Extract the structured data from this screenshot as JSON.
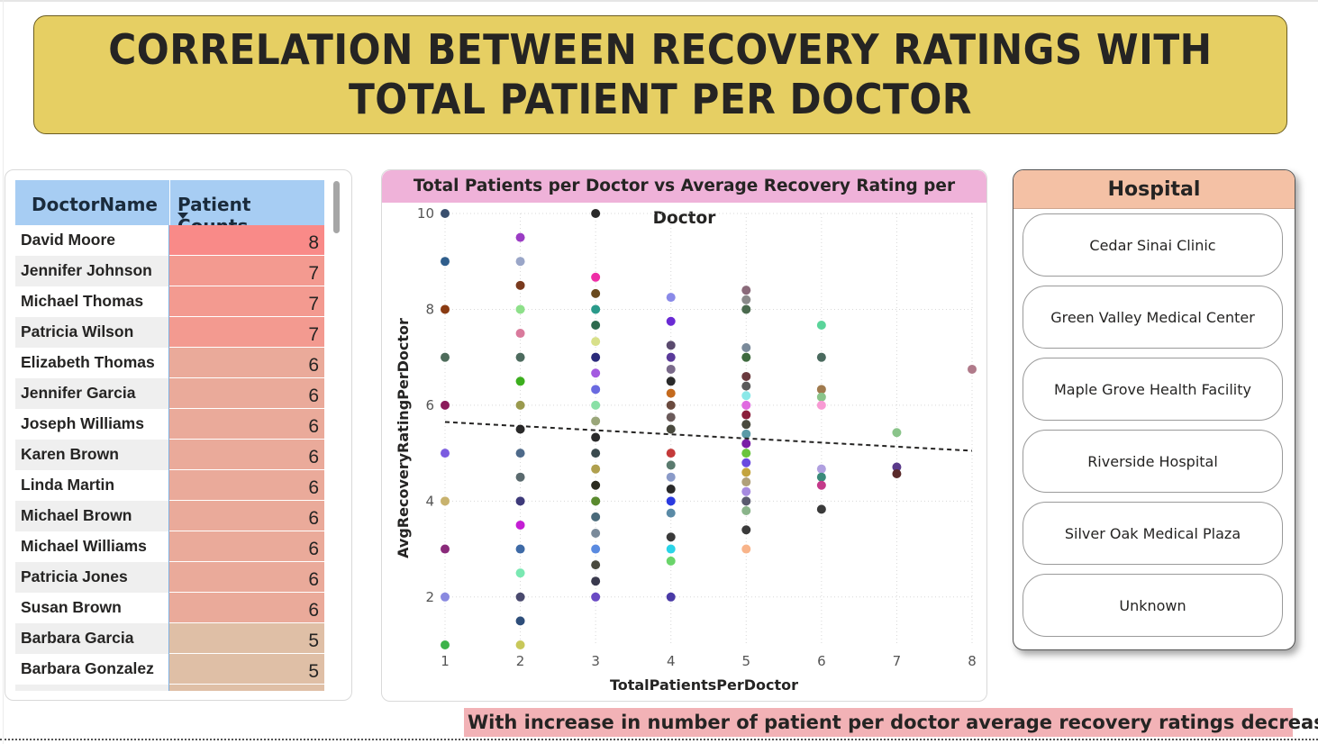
{
  "banner": {
    "title": "CORRELATION BETWEEN RECOVERY RATINGS WITH\nTOTAL PATIENT PER DOCTOR"
  },
  "table": {
    "columns": [
      "DoctorName",
      "Patient Counts"
    ],
    "sort_icon": "sort-descending-icon",
    "rows": [
      {
        "name": "David Moore",
        "count": "8",
        "color": "#f98a88"
      },
      {
        "name": "Jennifer Johnson",
        "count": "7",
        "color": "#f39a90"
      },
      {
        "name": "Michael Thomas",
        "count": "7",
        "color": "#f39a90"
      },
      {
        "name": "Patricia Wilson",
        "count": "7",
        "color": "#f39a90"
      },
      {
        "name": "Elizabeth Thomas",
        "count": "6",
        "color": "#eaaa9a"
      },
      {
        "name": "Jennifer Garcia",
        "count": "6",
        "color": "#eaaa9a"
      },
      {
        "name": "Joseph Williams",
        "count": "6",
        "color": "#eaaa9a"
      },
      {
        "name": "Karen Brown",
        "count": "6",
        "color": "#eaaa9a"
      },
      {
        "name": "Linda Martin",
        "count": "6",
        "color": "#eaaa9a"
      },
      {
        "name": "Michael Brown",
        "count": "6",
        "color": "#eaaa9a"
      },
      {
        "name": "Michael Williams",
        "count": "6",
        "color": "#eaaa9a"
      },
      {
        "name": "Patricia Jones",
        "count": "6",
        "color": "#eaaa9a"
      },
      {
        "name": "Susan Brown",
        "count": "6",
        "color": "#eaaa9a"
      },
      {
        "name": "Barbara Garcia",
        "count": "5",
        "color": "#dfbfa6"
      },
      {
        "name": "Barbara Gonzalez",
        "count": "5",
        "color": "#dfbfa6"
      },
      {
        "name": "",
        "count": "",
        "color": "#dfbfa6"
      }
    ]
  },
  "chart_data": {
    "type": "scatter",
    "title": "Total Patients per Doctor vs Average Recovery Rating per Doctor",
    "xlabel": "TotalPatientsPerDoctor",
    "ylabel": "AvgRecoveryRatingPerDoctor",
    "xlim": [
      1,
      8
    ],
    "ylim": [
      1,
      10
    ],
    "x_ticks": [
      "1",
      "2",
      "3",
      "4",
      "5",
      "6",
      "7",
      "8"
    ],
    "y_ticks": [
      "2",
      "4",
      "6",
      "8",
      "10"
    ],
    "grid": true,
    "trendline": {
      "style": "dashed",
      "x": [
        1,
        8
      ],
      "y": [
        5.65,
        5.05
      ]
    },
    "points": [
      {
        "x": 1,
        "y": 10.0,
        "c": "#3a4f6e"
      },
      {
        "x": 1,
        "y": 9.0,
        "c": "#2f5e8c"
      },
      {
        "x": 1,
        "y": 8.0,
        "c": "#8a3b12"
      },
      {
        "x": 1,
        "y": 7.0,
        "c": "#4d6b5a"
      },
      {
        "x": 1,
        "y": 6.0,
        "c": "#8b1a5a"
      },
      {
        "x": 1,
        "y": 5.0,
        "c": "#7b5ce0"
      },
      {
        "x": 1,
        "y": 4.0,
        "c": "#c8b26e"
      },
      {
        "x": 1,
        "y": 3.0,
        "c": "#8a2a7a"
      },
      {
        "x": 1,
        "y": 2.0,
        "c": "#8a8ae0"
      },
      {
        "x": 1,
        "y": 1.0,
        "c": "#3cb34a"
      },
      {
        "x": 2,
        "y": 9.5,
        "c": "#9b3cc4"
      },
      {
        "x": 2,
        "y": 9.0,
        "c": "#9aa6c8"
      },
      {
        "x": 2,
        "y": 8.5,
        "c": "#7a3a1e"
      },
      {
        "x": 2,
        "y": 8.0,
        "c": "#8ee08a"
      },
      {
        "x": 2,
        "y": 7.5,
        "c": "#d97a9c"
      },
      {
        "x": 2,
        "y": 7.0,
        "c": "#4d6b5e"
      },
      {
        "x": 2,
        "y": 6.5,
        "c": "#3cae1e"
      },
      {
        "x": 2,
        "y": 6.0,
        "c": "#9a9a4e"
      },
      {
        "x": 2,
        "y": 5.5,
        "c": "#2a2a2a"
      },
      {
        "x": 2,
        "y": 5.0,
        "c": "#4e6a8a"
      },
      {
        "x": 2,
        "y": 4.5,
        "c": "#5a6a6e"
      },
      {
        "x": 2,
        "y": 4.0,
        "c": "#3e3a7a"
      },
      {
        "x": 2,
        "y": 3.5,
        "c": "#c41ed4"
      },
      {
        "x": 2,
        "y": 3.0,
        "c": "#3e6aa6"
      },
      {
        "x": 2,
        "y": 2.5,
        "c": "#7ae8b2"
      },
      {
        "x": 2,
        "y": 2.0,
        "c": "#4a4a6e"
      },
      {
        "x": 2,
        "y": 1.5,
        "c": "#2e4e7a"
      },
      {
        "x": 2,
        "y": 1.0,
        "c": "#c8c85a"
      },
      {
        "x": 3,
        "y": 10.0,
        "c": "#2a2a2a"
      },
      {
        "x": 3,
        "y": 8.67,
        "c": "#ee2ea6"
      },
      {
        "x": 3,
        "y": 8.33,
        "c": "#6a4a1e"
      },
      {
        "x": 3,
        "y": 8.0,
        "c": "#2a9a8a"
      },
      {
        "x": 3,
        "y": 7.67,
        "c": "#2e6a4e"
      },
      {
        "x": 3,
        "y": 7.33,
        "c": "#d8e08a"
      },
      {
        "x": 3,
        "y": 7.0,
        "c": "#2a2a7a"
      },
      {
        "x": 3,
        "y": 6.67,
        "c": "#a45ae0"
      },
      {
        "x": 3,
        "y": 6.33,
        "c": "#6a6ae0"
      },
      {
        "x": 3,
        "y": 6.0,
        "c": "#8ae0a6"
      },
      {
        "x": 3,
        "y": 5.67,
        "c": "#9aa67a"
      },
      {
        "x": 3,
        "y": 5.33,
        "c": "#2a2a2a"
      },
      {
        "x": 3,
        "y": 5.0,
        "c": "#3a4a4e"
      },
      {
        "x": 3,
        "y": 4.67,
        "c": "#b0a04e"
      },
      {
        "x": 3,
        "y": 4.33,
        "c": "#2a2a1e"
      },
      {
        "x": 3,
        "y": 4.0,
        "c": "#5a8a2e"
      },
      {
        "x": 3,
        "y": 3.67,
        "c": "#4a6a7a"
      },
      {
        "x": 3,
        "y": 3.33,
        "c": "#7a8a9a"
      },
      {
        "x": 3,
        "y": 3.0,
        "c": "#5a8ae0"
      },
      {
        "x": 3,
        "y": 2.67,
        "c": "#4a4a3e"
      },
      {
        "x": 3,
        "y": 2.33,
        "c": "#3a3a4e"
      },
      {
        "x": 3,
        "y": 2.0,
        "c": "#6a4ac4"
      },
      {
        "x": 4,
        "y": 8.25,
        "c": "#8a8ae8"
      },
      {
        "x": 4,
        "y": 7.75,
        "c": "#6a2ad4"
      },
      {
        "x": 4,
        "y": 7.25,
        "c": "#5a4a6e"
      },
      {
        "x": 4,
        "y": 7.0,
        "c": "#5a3a9a"
      },
      {
        "x": 4,
        "y": 6.75,
        "c": "#7a6a8a"
      },
      {
        "x": 4,
        "y": 6.5,
        "c": "#2a2a2a"
      },
      {
        "x": 4,
        "y": 6.25,
        "c": "#c46a1e"
      },
      {
        "x": 4,
        "y": 6.0,
        "c": "#6a4a3e"
      },
      {
        "x": 4,
        "y": 5.75,
        "c": "#6a5a5a"
      },
      {
        "x": 4,
        "y": 5.5,
        "c": "#4a4a3e"
      },
      {
        "x": 4,
        "y": 5.0,
        "c": "#c43a3a"
      },
      {
        "x": 4,
        "y": 4.75,
        "c": "#5a7a6e"
      },
      {
        "x": 4,
        "y": 4.5,
        "c": "#8a9ac8"
      },
      {
        "x": 4,
        "y": 4.25,
        "c": "#2a2a2a"
      },
      {
        "x": 4,
        "y": 4.0,
        "c": "#2a3ae0"
      },
      {
        "x": 4,
        "y": 3.75,
        "c": "#5a8aa6"
      },
      {
        "x": 4,
        "y": 3.25,
        "c": "#3a3a3a"
      },
      {
        "x": 4,
        "y": 3.0,
        "c": "#2ad4e8"
      },
      {
        "x": 4,
        "y": 2.75,
        "c": "#6ad46a"
      },
      {
        "x": 4,
        "y": 2.0,
        "c": "#4a3aa6"
      },
      {
        "x": 5,
        "y": 8.4,
        "c": "#8a6a7a"
      },
      {
        "x": 5,
        "y": 8.2,
        "c": "#8a8a8a"
      },
      {
        "x": 5,
        "y": 8.0,
        "c": "#4a6a4e"
      },
      {
        "x": 5,
        "y": 7.2,
        "c": "#7a8a9a"
      },
      {
        "x": 5,
        "y": 7.0,
        "c": "#3e6a3e"
      },
      {
        "x": 5,
        "y": 6.6,
        "c": "#6a3a3e"
      },
      {
        "x": 5,
        "y": 6.4,
        "c": "#5a5a5a"
      },
      {
        "x": 5,
        "y": 6.2,
        "c": "#8ae8e8"
      },
      {
        "x": 5,
        "y": 6.0,
        "c": "#e06ae0"
      },
      {
        "x": 5,
        "y": 5.8,
        "c": "#8a1e3a"
      },
      {
        "x": 5,
        "y": 5.6,
        "c": "#4a4a3e"
      },
      {
        "x": 5,
        "y": 5.4,
        "c": "#5a9aa6"
      },
      {
        "x": 5,
        "y": 5.2,
        "c": "#7a1ea6"
      },
      {
        "x": 5,
        "y": 5.0,
        "c": "#6ac43e"
      },
      {
        "x": 5,
        "y": 4.8,
        "c": "#6a4ae0"
      },
      {
        "x": 5,
        "y": 4.6,
        "c": "#c4a43e"
      },
      {
        "x": 5,
        "y": 4.4,
        "c": "#b0a07a"
      },
      {
        "x": 5,
        "y": 4.2,
        "c": "#a68ae0"
      },
      {
        "x": 5,
        "y": 4.0,
        "c": "#5a5a6e"
      },
      {
        "x": 5,
        "y": 3.8,
        "c": "#8ab48a"
      },
      {
        "x": 5,
        "y": 3.4,
        "c": "#3a3a3a"
      },
      {
        "x": 5,
        "y": 3.0,
        "c": "#f8b48a"
      },
      {
        "x": 6,
        "y": 7.67,
        "c": "#5ad49a"
      },
      {
        "x": 6,
        "y": 7.0,
        "c": "#4a6a5e"
      },
      {
        "x": 6,
        "y": 6.33,
        "c": "#a07a4e"
      },
      {
        "x": 6,
        "y": 6.17,
        "c": "#8ac48a"
      },
      {
        "x": 6,
        "y": 6.0,
        "c": "#f89ad4"
      },
      {
        "x": 6,
        "y": 4.67,
        "c": "#b0a0e0"
      },
      {
        "x": 6,
        "y": 4.5,
        "c": "#3a8a7a"
      },
      {
        "x": 6,
        "y": 4.33,
        "c": "#c43a8a"
      },
      {
        "x": 6,
        "y": 3.83,
        "c": "#3a3a3a"
      },
      {
        "x": 7,
        "y": 5.43,
        "c": "#8ac48a"
      },
      {
        "x": 7,
        "y": 4.71,
        "c": "#5a3a8a"
      },
      {
        "x": 7,
        "y": 4.57,
        "c": "#5a2a2a"
      },
      {
        "x": 8,
        "y": 6.75,
        "c": "#b07a8a"
      }
    ]
  },
  "slicer": {
    "title": "Hospital",
    "items": [
      "Cedar Sinai Clinic",
      "Green Valley Medical Center",
      "Maple Grove Health Facility",
      "Riverside Hospital",
      "Silver Oak Medical Plaza",
      "Unknown"
    ]
  },
  "note": "With increase in number of patient per doctor average recovery ratings decreases."
}
